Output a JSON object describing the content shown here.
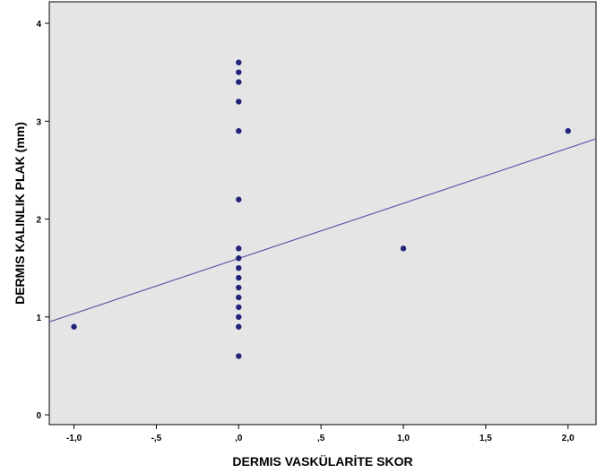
{
  "chart_data": {
    "type": "scatter",
    "title": "",
    "xlabel": "DERMIS VASKÜLARİTE SKOR",
    "ylabel": "DERMIS KALINLIK PLAK (mm)",
    "xlim": [
      -1.15,
      2.17
    ],
    "ylim": [
      -0.1,
      4.22
    ],
    "x_ticks": [
      {
        "value": -1.0,
        "label": "-1,0"
      },
      {
        "value": -0.5,
        "label": "-,5"
      },
      {
        "value": 0.0,
        "label": ",0"
      },
      {
        "value": 0.5,
        "label": ",5"
      },
      {
        "value": 1.0,
        "label": "1,0"
      },
      {
        "value": 1.5,
        "label": "1,5"
      },
      {
        "value": 2.0,
        "label": "2,0"
      }
    ],
    "y_ticks": [
      {
        "value": 0,
        "label": "0"
      },
      {
        "value": 1,
        "label": "1"
      },
      {
        "value": 2,
        "label": "2"
      },
      {
        "value": 3,
        "label": "3"
      },
      {
        "value": 4,
        "label": "4"
      }
    ],
    "grid": false,
    "points": [
      {
        "x": -1.0,
        "y": 0.9
      },
      {
        "x": 0.0,
        "y": 3.6
      },
      {
        "x": 0.0,
        "y": 3.5
      },
      {
        "x": 0.0,
        "y": 3.4
      },
      {
        "x": 0.0,
        "y": 3.2
      },
      {
        "x": 0.0,
        "y": 2.9
      },
      {
        "x": 0.0,
        "y": 2.2
      },
      {
        "x": 0.0,
        "y": 1.7
      },
      {
        "x": 0.0,
        "y": 1.6
      },
      {
        "x": 0.0,
        "y": 1.5
      },
      {
        "x": 0.0,
        "y": 1.4
      },
      {
        "x": 0.0,
        "y": 1.3
      },
      {
        "x": 0.0,
        "y": 1.2
      },
      {
        "x": 0.0,
        "y": 1.1
      },
      {
        "x": 0.0,
        "y": 1.0
      },
      {
        "x": 0.0,
        "y": 0.9
      },
      {
        "x": 0.0,
        "y": 0.6
      },
      {
        "x": 1.0,
        "y": 1.7
      },
      {
        "x": 2.0,
        "y": 2.9
      }
    ],
    "fit_line": {
      "x1": -1.15,
      "y1": 0.95,
      "x2": 2.17,
      "y2": 2.82
    },
    "colors": {
      "plot_background": "#e5e5e5",
      "point": "#23237a",
      "fit_line": "#5a5aa8",
      "frame": "#000000"
    }
  }
}
